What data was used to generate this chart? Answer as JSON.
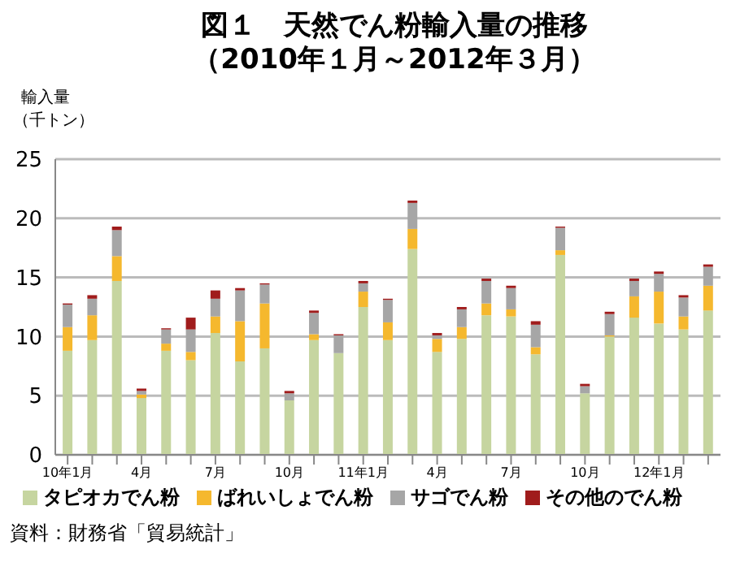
{
  "chart_data": {
    "type": "bar",
    "stacked": true,
    "title": "図１　天然でん粉輸入量の推移",
    "subtitle": "（2010年１月～2012年３月）",
    "ylabel": "輸入量（千トン）",
    "categories": [
      "10年1月",
      null,
      null,
      "4月",
      null,
      null,
      "7月",
      null,
      null,
      "10月",
      null,
      null,
      "11年1月",
      null,
      null,
      "4月",
      null,
      null,
      "7月",
      null,
      null,
      "10月",
      null,
      null,
      "12年1月",
      null,
      null
    ],
    "series": [
      {
        "name": "タピオカでん粉",
        "color": "#c6d5a0",
        "values": [
          8.8,
          9.7,
          14.7,
          4.8,
          8.8,
          8.0,
          10.3,
          7.9,
          9.0,
          4.6,
          9.7,
          8.6,
          12.5,
          9.7,
          17.4,
          8.7,
          9.8,
          11.8,
          11.7,
          8.5,
          16.9,
          5.2,
          10.0,
          11.6,
          11.1,
          10.6,
          12.2
        ]
      },
      {
        "name": "ばれいしょでん粉",
        "color": "#f5b82e",
        "values": [
          2.0,
          2.1,
          2.1,
          0.3,
          0.6,
          0.7,
          1.4,
          3.4,
          3.8,
          0,
          0.5,
          0,
          1.3,
          1.5,
          1.7,
          1.1,
          1.0,
          1.0,
          0.6,
          0.6,
          0.4,
          0,
          0.1,
          1.8,
          2.7,
          1.1,
          2.1
        ]
      },
      {
        "name": "サゴでん粉",
        "color": "#a6a6a6",
        "values": [
          1.9,
          1.4,
          2.2,
          0.3,
          1.2,
          1.9,
          1.5,
          2.6,
          1.6,
          0.6,
          1.8,
          1.5,
          0.7,
          1.9,
          2.2,
          0.3,
          1.5,
          1.9,
          1.8,
          1.9,
          1.9,
          0.6,
          1.8,
          1.3,
          1.5,
          1.6,
          1.6
        ]
      },
      {
        "name": "その他のでん粉",
        "color": "#a01c1c",
        "values": [
          0.1,
          0.3,
          0.3,
          0.2,
          0.1,
          1.0,
          0.7,
          0.2,
          0.1,
          0.2,
          0.2,
          0.1,
          0.2,
          0.1,
          0.2,
          0.2,
          0.2,
          0.2,
          0.2,
          0.3,
          0.1,
          0.2,
          0.2,
          0.2,
          0.2,
          0.2,
          0.2
        ]
      }
    ],
    "ylim": [
      0,
      25
    ],
    "yticks": [
      0,
      5,
      10,
      15,
      20,
      25
    ],
    "grid": "y",
    "legend": "bottom",
    "annotations": [
      "資料：財務省「貿易統計」"
    ]
  }
}
